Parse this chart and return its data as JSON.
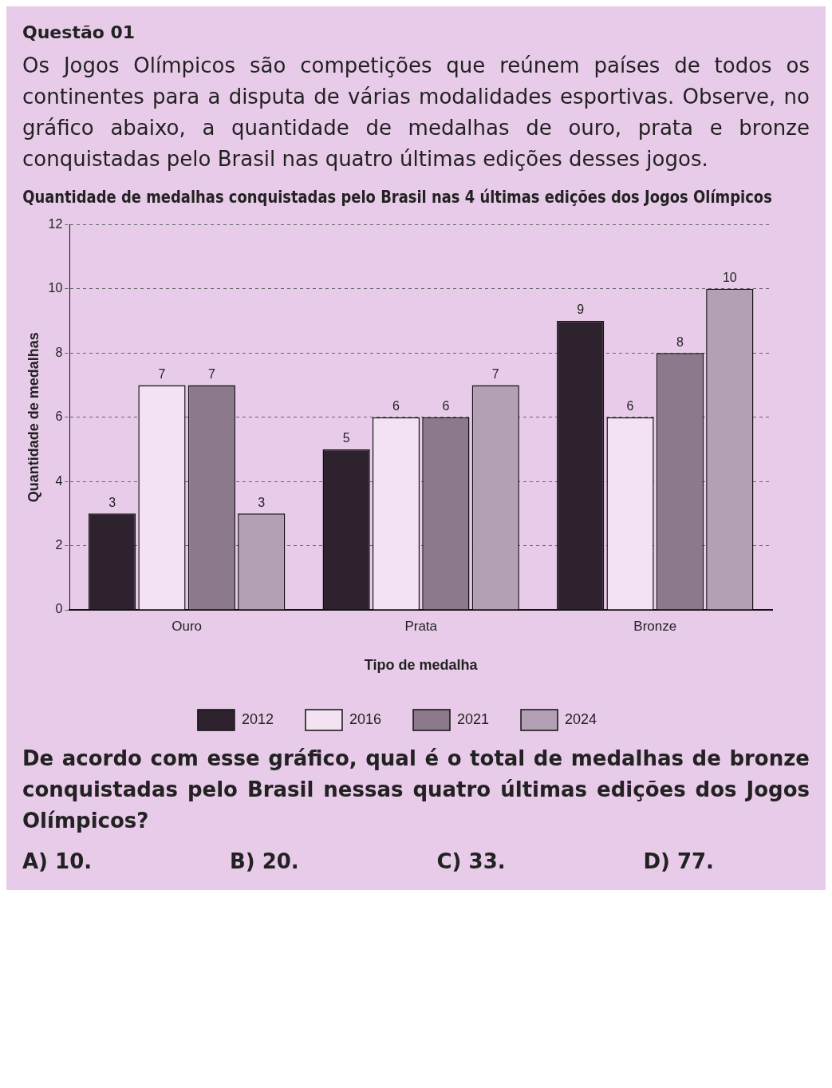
{
  "chart_data": {
    "type": "bar",
    "title": "Quantidade de medalhas conquistadas pelo Brasil nas 4 últimas edições dos Jogos Olímpicos",
    "xlabel": "Tipo de medalha",
    "ylabel": "Quantidade de medalhas",
    "categories": [
      "Ouro",
      "Prata",
      "Bronze"
    ],
    "series": [
      {
        "name": "2012",
        "color": "#2e222e",
        "values": [
          3,
          5,
          9
        ]
      },
      {
        "name": "2016",
        "color": "#f2e2f2",
        "values": [
          7,
          6,
          6
        ]
      },
      {
        "name": "2021",
        "color": "#8c7a8c",
        "values": [
          7,
          6,
          8
        ]
      },
      {
        "name": "2024",
        "color": "#b4a0b4",
        "values": [
          3,
          7,
          10
        ]
      }
    ],
    "ylim": [
      0,
      12
    ],
    "yticks": [
      0,
      2,
      4,
      6,
      8,
      10,
      12
    ],
    "grid": "y",
    "legend": "bottom",
    "data_labels": true,
    "annotations": [
      "Questão 01",
      "Os Jogos Olímpicos são competições que reúnem países de todos os continentes para a disputa de várias modalidades esportivas. Observe, no gráfico abaixo, a quantidade de medalhas de ouro, prata e bronze conquistadas pelo Brasil nas quatro últimas edições desses jogos.",
      "De acordo com esse gráfico, qual é o total de medalhas de bronze conquistadas pelo Brasil nessas quatro últimas edições dos Jogos Olímpicos?",
      "A) 10.",
      "B) 20.",
      "C) 33.",
      "D) 77."
    ]
  }
}
